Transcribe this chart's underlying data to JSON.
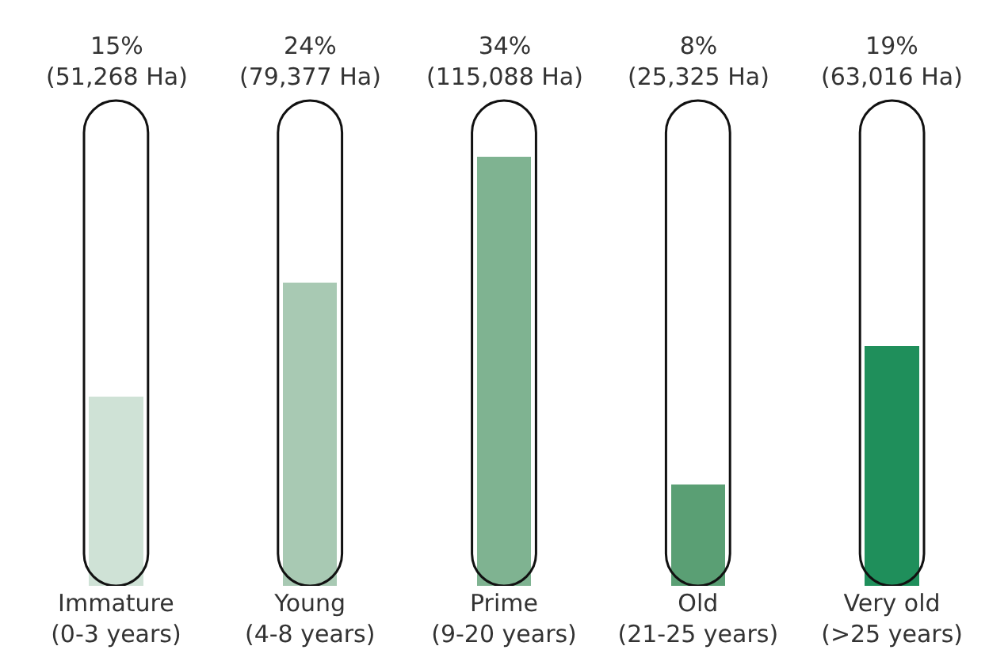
{
  "chart_data": {
    "type": "bar",
    "categories": [
      "Immature\n(0-3 years)",
      "Young\n(4-8 years)",
      "Prime\n(9-20 years)",
      "Old\n(21-25 years)",
      "Very old\n(>25 years)"
    ],
    "values": [
      15,
      24,
      34,
      8,
      19
    ],
    "colors": [
      "#cfe2d6",
      "#a8c9b3",
      "#7fb391",
      "#5a9f74",
      "#1f8f5b"
    ],
    "value_labels": [
      "15%\n(51,268 Ha)",
      "24%\n(79,377 Ha)",
      "34%\n(115,088 Ha)",
      "8%\n(25,325 Ha)",
      "19%\n(63,016 Ha)"
    ],
    "grid": false,
    "legend": false
  }
}
